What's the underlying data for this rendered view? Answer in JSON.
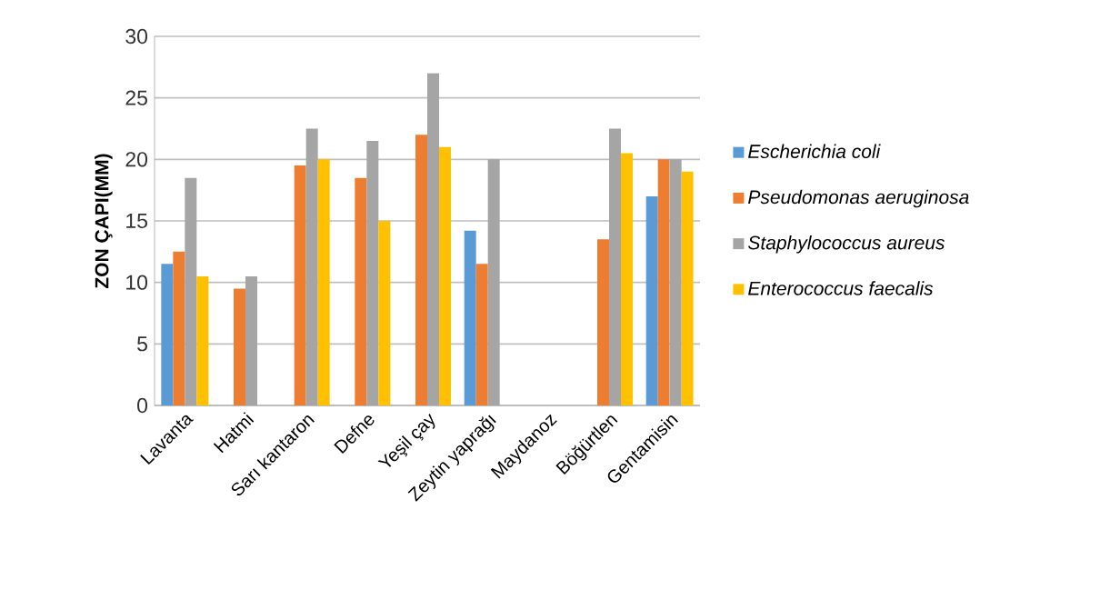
{
  "chart_data": {
    "type": "bar",
    "ylabel": "ZON ÇAPI(MM)",
    "categories": [
      "Lavanta",
      "Hatmi",
      "Sarı kantaron",
      "Defne",
      "Yeşil çay",
      "Zeytin yaprağı",
      "Maydanoz",
      "Böğürtlen",
      "Gentamisin"
    ],
    "series": [
      {
        "name": "Escherichia coli",
        "color": "#5b9bd5",
        "values": [
          11.5,
          null,
          null,
          null,
          null,
          14.2,
          null,
          null,
          17
        ]
      },
      {
        "name": "Pseudomonas aeruginosa",
        "color": "#ed7d31",
        "values": [
          12.5,
          9.5,
          19.5,
          18.5,
          22,
          11.5,
          null,
          13.5,
          20
        ]
      },
      {
        "name": "Staphylococcus aureus",
        "color": "#a5a5a5",
        "values": [
          18.5,
          10.5,
          22.5,
          21.5,
          27,
          20,
          null,
          22.5,
          20
        ]
      },
      {
        "name": "Enterococcus faecalis",
        "color": "#ffc000",
        "values": [
          10.5,
          null,
          20,
          15,
          21,
          null,
          null,
          20.5,
          19
        ]
      }
    ],
    "ylim": [
      0,
      30
    ],
    "yticks": [
      0,
      5,
      10,
      15,
      20,
      25,
      30
    ],
    "grid": "y",
    "legend": "right"
  }
}
